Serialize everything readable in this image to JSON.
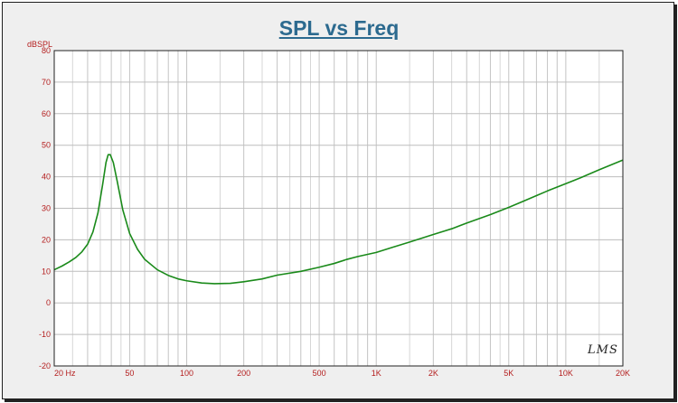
{
  "chart_data": {
    "type": "line",
    "title": "SPL vs Freq",
    "ylabel": "dBSPL",
    "xlabel": "",
    "x_scale": "log",
    "xlim": [
      20,
      20000
    ],
    "ylim": [
      -20,
      80
    ],
    "grid": true,
    "x_tick_labels": [
      {
        "value": 20,
        "label": "20  Hz"
      },
      {
        "value": 50,
        "label": "50"
      },
      {
        "value": 100,
        "label": "100"
      },
      {
        "value": 200,
        "label": "200"
      },
      {
        "value": 500,
        "label": "500"
      },
      {
        "value": 1000,
        "label": "1K"
      },
      {
        "value": 2000,
        "label": "2K"
      },
      {
        "value": 5000,
        "label": "5K"
      },
      {
        "value": 10000,
        "label": "10K"
      },
      {
        "value": 20000,
        "label": "20K"
      }
    ],
    "y_tick_labels": [
      {
        "value": 80,
        "label": "80"
      },
      {
        "value": 70,
        "label": "70"
      },
      {
        "value": 60,
        "label": "60"
      },
      {
        "value": 50,
        "label": "50"
      },
      {
        "value": 40,
        "label": "40"
      },
      {
        "value": 30,
        "label": "30"
      },
      {
        "value": 20,
        "label": "20"
      },
      {
        "value": 10,
        "label": "10"
      },
      {
        "value": 0,
        "label": "0"
      },
      {
        "value": -10,
        "label": "-10"
      },
      {
        "value": -20,
        "label": "-20"
      }
    ],
    "series": [
      {
        "color": "#1a8a1a",
        "points": [
          [
            20,
            10.5
          ],
          [
            22,
            11.7
          ],
          [
            24,
            13.0
          ],
          [
            26,
            14.4
          ],
          [
            28,
            16.2
          ],
          [
            30,
            18.6
          ],
          [
            32,
            22.5
          ],
          [
            34,
            28.5
          ],
          [
            36,
            37.5
          ],
          [
            37.5,
            44.5
          ],
          [
            38.5,
            47.0
          ],
          [
            39.5,
            47.0
          ],
          [
            41,
            44.5
          ],
          [
            43,
            38.5
          ],
          [
            46,
            29.5
          ],
          [
            50,
            22.0
          ],
          [
            55,
            17.0
          ],
          [
            60,
            13.8
          ],
          [
            70,
            10.5
          ],
          [
            80,
            8.7
          ],
          [
            90,
            7.6
          ],
          [
            100,
            7.0
          ],
          [
            120,
            6.3
          ],
          [
            140,
            6.1
          ],
          [
            170,
            6.2
          ],
          [
            200,
            6.7
          ],
          [
            250,
            7.6
          ],
          [
            300,
            8.8
          ],
          [
            400,
            10.0
          ],
          [
            500,
            11.3
          ],
          [
            600,
            12.5
          ],
          [
            700,
            13.8
          ],
          [
            800,
            14.7
          ],
          [
            1000,
            16.0
          ],
          [
            1200,
            17.5
          ],
          [
            1500,
            19.3
          ],
          [
            2000,
            21.7
          ],
          [
            2500,
            23.5
          ],
          [
            3000,
            25.3
          ],
          [
            4000,
            28.0
          ],
          [
            5000,
            30.3
          ],
          [
            6000,
            32.3
          ],
          [
            7000,
            34.0
          ],
          [
            8000,
            35.5
          ],
          [
            10000,
            37.8
          ],
          [
            12000,
            39.7
          ],
          [
            15000,
            42.2
          ],
          [
            20000,
            45.3
          ]
        ]
      }
    ]
  },
  "signature_text": "LMS"
}
